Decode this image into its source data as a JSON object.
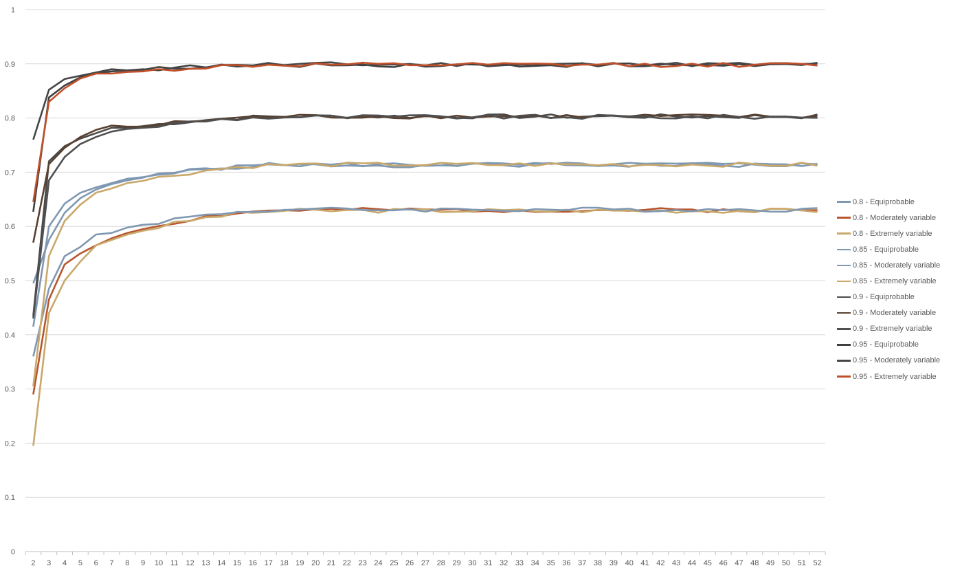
{
  "chart_data": {
    "type": "line",
    "title": "",
    "xlabel": "",
    "ylabel": "",
    "ylim": [
      0,
      1
    ],
    "yticks": [
      "0",
      "0.1",
      "0.2",
      "0.3",
      "0.4",
      "0.5",
      "0.6",
      "0.7",
      "0.8",
      "0.9",
      "1"
    ],
    "x": [
      2,
      3,
      4,
      5,
      6,
      7,
      8,
      9,
      10,
      11,
      12,
      13,
      14,
      15,
      16,
      17,
      18,
      19,
      20,
      21,
      22,
      23,
      24,
      25,
      26,
      27,
      28,
      29,
      30,
      31,
      32,
      33,
      34,
      35,
      36,
      37,
      38,
      39,
      40,
      41,
      42,
      43,
      44,
      45,
      46,
      47,
      48,
      49,
      50,
      51,
      52
    ],
    "grid": "horizontal",
    "legend_position": "right",
    "series": [
      {
        "name": "0.8 -  Equiprobable",
        "color": "#7f98b2",
        "start": [
          0.415,
          0.6,
          0.642,
          0.662,
          0.672,
          0.68,
          0.688,
          0.691
        ],
        "plateau": 0.713,
        "seed": 1
      },
      {
        "name": "0.8 -  Moderately variable",
        "color": "#b7562e",
        "start": [
          0.29,
          0.465,
          0.53,
          0.55,
          0.565,
          0.578,
          0.588,
          0.595
        ],
        "plateau": 0.63,
        "seed": 2
      },
      {
        "name": "0.8 -  Extremely variable",
        "color": "#c9a86a",
        "start": [
          0.195,
          0.44,
          0.5,
          0.535,
          0.565,
          0.575,
          0.585,
          0.592
        ],
        "plateau": 0.629,
        "seed": 3
      },
      {
        "name": "0.85 -  Equiprobable",
        "color": "#7f98b2",
        "start": [
          0.36,
          0.485,
          0.545,
          0.562,
          0.585,
          0.588,
          0.598,
          0.603
        ],
        "plateau": 0.631,
        "seed": 4
      },
      {
        "name": "0.85 -  Moderately variable",
        "color": "#7f98b2",
        "start": [
          0.495,
          0.575,
          0.625,
          0.652,
          0.668,
          0.678,
          0.685,
          0.69
        ],
        "plateau": 0.714,
        "seed": 5
      },
      {
        "name": "0.85 -  Extremely variable",
        "color": "#c9a86a",
        "start": [
          0.305,
          0.545,
          0.61,
          0.64,
          0.662,
          0.67,
          0.68,
          0.684
        ],
        "plateau": 0.714,
        "seed": 6
      },
      {
        "name": "0.9 -  Equiprobable",
        "color": "#4a4a4a",
        "start": [
          0.435,
          0.72,
          0.748,
          0.762,
          0.772,
          0.782,
          0.782,
          0.785
        ],
        "plateau": 0.803,
        "seed": 7
      },
      {
        "name": "0.9 -  Moderately variable",
        "color": "#5a4030",
        "start": [
          0.57,
          0.715,
          0.745,
          0.765,
          0.778,
          0.786,
          0.784,
          0.784
        ],
        "plateau": 0.803,
        "seed": 8
      },
      {
        "name": "0.9 -  Extremely variable",
        "color": "#4f4f4f",
        "start": [
          0.43,
          0.685,
          0.728,
          0.752,
          0.765,
          0.775,
          0.78,
          0.782
        ],
        "plateau": 0.802,
        "seed": 9
      },
      {
        "name": "0.95 -  Equiprobable",
        "color": "#404040",
        "start": [
          0.627,
          0.838,
          0.86,
          0.875,
          0.882,
          0.886,
          0.888,
          0.89
        ],
        "plateau": 0.898,
        "seed": 10
      },
      {
        "name": "0.95 -  Moderately variable",
        "color": "#454545",
        "start": [
          0.76,
          0.852,
          0.872,
          0.878,
          0.884,
          0.89,
          0.888,
          0.889
        ],
        "plateau": 0.899,
        "seed": 11
      },
      {
        "name": "0.95 -  Extremely variable",
        "color": "#c0502a",
        "start": [
          0.645,
          0.83,
          0.855,
          0.873,
          0.882,
          0.882,
          0.885,
          0.886
        ],
        "plateau": 0.898,
        "seed": 12
      }
    ]
  }
}
